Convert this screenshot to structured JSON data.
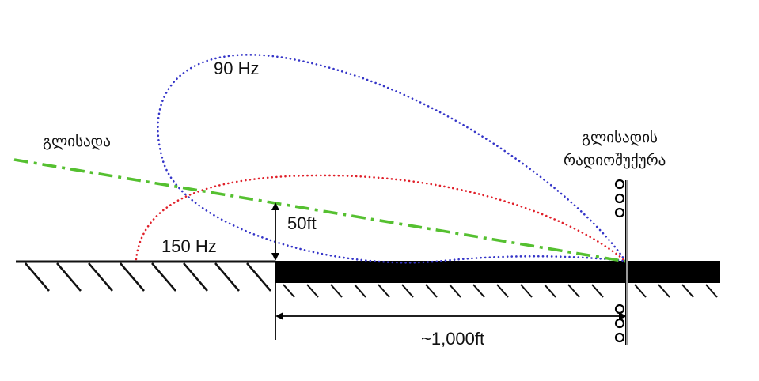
{
  "labels": {
    "lobe_90": "90 Hz",
    "lobe_150": "150 Hz",
    "height": "50ft",
    "distance": "~1,000ft",
    "glideslope": "გლისადა",
    "antenna_line1": "გლისადის",
    "antenna_line2": "რადიოშუქურა"
  },
  "colors": {
    "lobe_90": "#3535c8",
    "lobe_150": "#e0202a",
    "glideslope": "#55c030",
    "ground": "#111111",
    "runway": "#000000"
  }
}
